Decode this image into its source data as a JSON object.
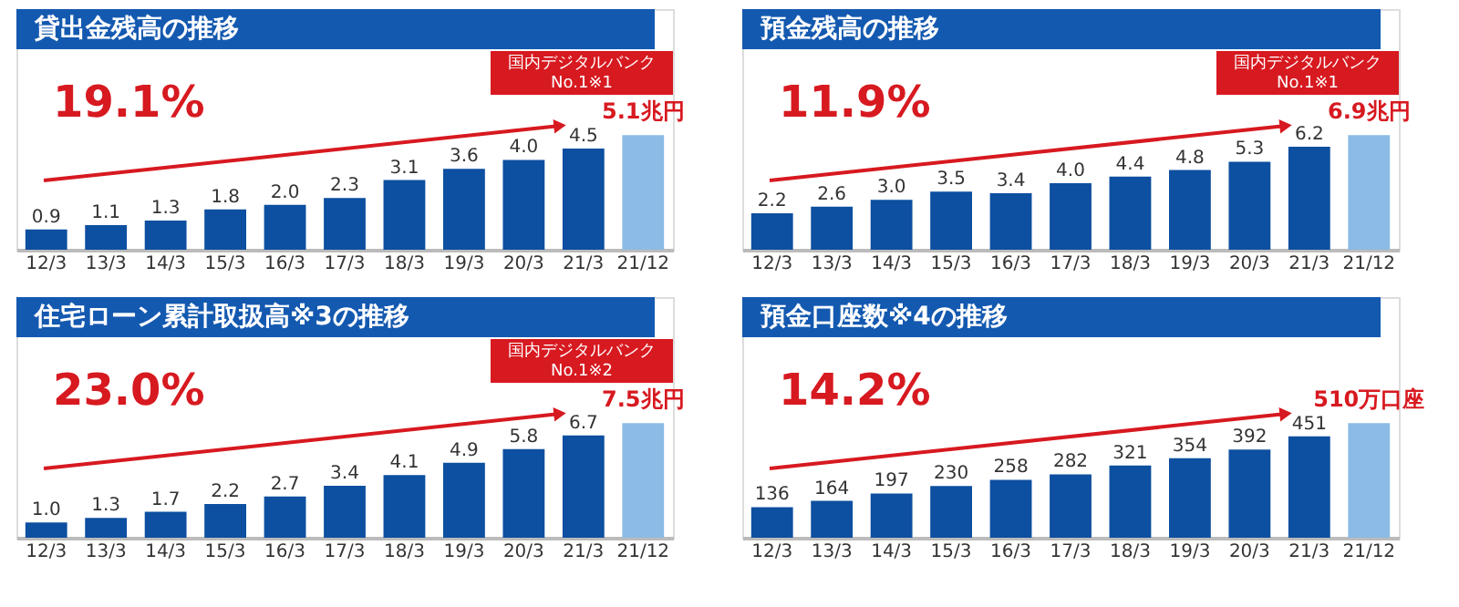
{
  "chart_data": [
    {
      "type": "bar",
      "title": "貸出金残高の推移",
      "categories": [
        "12/3",
        "13/3",
        "14/3",
        "15/3",
        "16/3",
        "17/3",
        "18/3",
        "19/3",
        "20/3",
        "21/3",
        "21/12"
      ],
      "values": [
        0.9,
        1.1,
        1.3,
        1.8,
        2.0,
        2.3,
        3.1,
        3.6,
        4.0,
        4.5,
        5.1
      ],
      "colors": [
        "#0d4fa0",
        "#0d4fa0",
        "#0d4fa0",
        "#0d4fa0",
        "#0d4fa0",
        "#0d4fa0",
        "#0d4fa0",
        "#0d4fa0",
        "#0d4fa0",
        "#0d4fa0",
        "#8bbbe6"
      ],
      "value_labels": [
        "0.9",
        "1.1",
        "1.3",
        "1.8",
        "2.0",
        "2.3",
        "3.1",
        "3.6",
        "4.0",
        "4.5",
        "5.1兆円"
      ],
      "annotations": [
        "19.1%",
        "国内デジタルバンク No.1※1"
      ]
    },
    {
      "type": "bar",
      "title": "預金残高の推移",
      "categories": [
        "12/3",
        "13/3",
        "14/3",
        "15/3",
        "16/3",
        "17/3",
        "18/3",
        "19/3",
        "20/3",
        "21/3",
        "21/12"
      ],
      "values": [
        2.2,
        2.6,
        3.0,
        3.5,
        3.4,
        4.0,
        4.4,
        4.8,
        5.3,
        6.2,
        6.9
      ],
      "colors": [
        "#0d4fa0",
        "#0d4fa0",
        "#0d4fa0",
        "#0d4fa0",
        "#0d4fa0",
        "#0d4fa0",
        "#0d4fa0",
        "#0d4fa0",
        "#0d4fa0",
        "#0d4fa0",
        "#8bbbe6"
      ],
      "value_labels": [
        "2.2",
        "2.6",
        "3.0",
        "3.5",
        "3.4",
        "4.0",
        "4.4",
        "4.8",
        "5.3",
        "6.2",
        "6.9兆円"
      ],
      "annotations": [
        "11.9%",
        "国内デジタルバンク No.1※1"
      ]
    },
    {
      "type": "bar",
      "title": "住宅ローン累計取扱高※3の推移",
      "categories": [
        "12/3",
        "13/3",
        "14/3",
        "15/3",
        "16/3",
        "17/3",
        "18/3",
        "19/3",
        "20/3",
        "21/3",
        "21/12"
      ],
      "values": [
        1.0,
        1.3,
        1.7,
        2.2,
        2.7,
        3.4,
        4.1,
        4.9,
        5.8,
        6.7,
        7.5
      ],
      "colors": [
        "#0d4fa0",
        "#0d4fa0",
        "#0d4fa0",
        "#0d4fa0",
        "#0d4fa0",
        "#0d4fa0",
        "#0d4fa0",
        "#0d4fa0",
        "#0d4fa0",
        "#0d4fa0",
        "#8bbbe6"
      ],
      "value_labels": [
        "1.0",
        "1.3",
        "1.7",
        "2.2",
        "2.7",
        "3.4",
        "4.1",
        "4.9",
        "5.8",
        "6.7",
        "7.5兆円"
      ],
      "annotations": [
        "23.0%",
        "国内デジタルバンク No.1※2"
      ]
    },
    {
      "type": "bar",
      "title": "預金口座数※4の推移",
      "categories": [
        "12/3",
        "13/3",
        "14/3",
        "15/3",
        "16/3",
        "17/3",
        "18/3",
        "19/3",
        "20/3",
        "21/3",
        "21/12"
      ],
      "values": [
        136,
        164,
        197,
        230,
        258,
        282,
        321,
        354,
        392,
        451,
        510
      ],
      "colors": [
        "#0d4fa0",
        "#0d4fa0",
        "#0d4fa0",
        "#0d4fa0",
        "#0d4fa0",
        "#0d4fa0",
        "#0d4fa0",
        "#0d4fa0",
        "#0d4fa0",
        "#0d4fa0",
        "#8bbbe6"
      ],
      "value_labels": [
        "136",
        "164",
        "197",
        "230",
        "258",
        "282",
        "321",
        "354",
        "392",
        "451",
        "510万口座"
      ],
      "annotations": [
        "14.2%"
      ]
    }
  ]
}
